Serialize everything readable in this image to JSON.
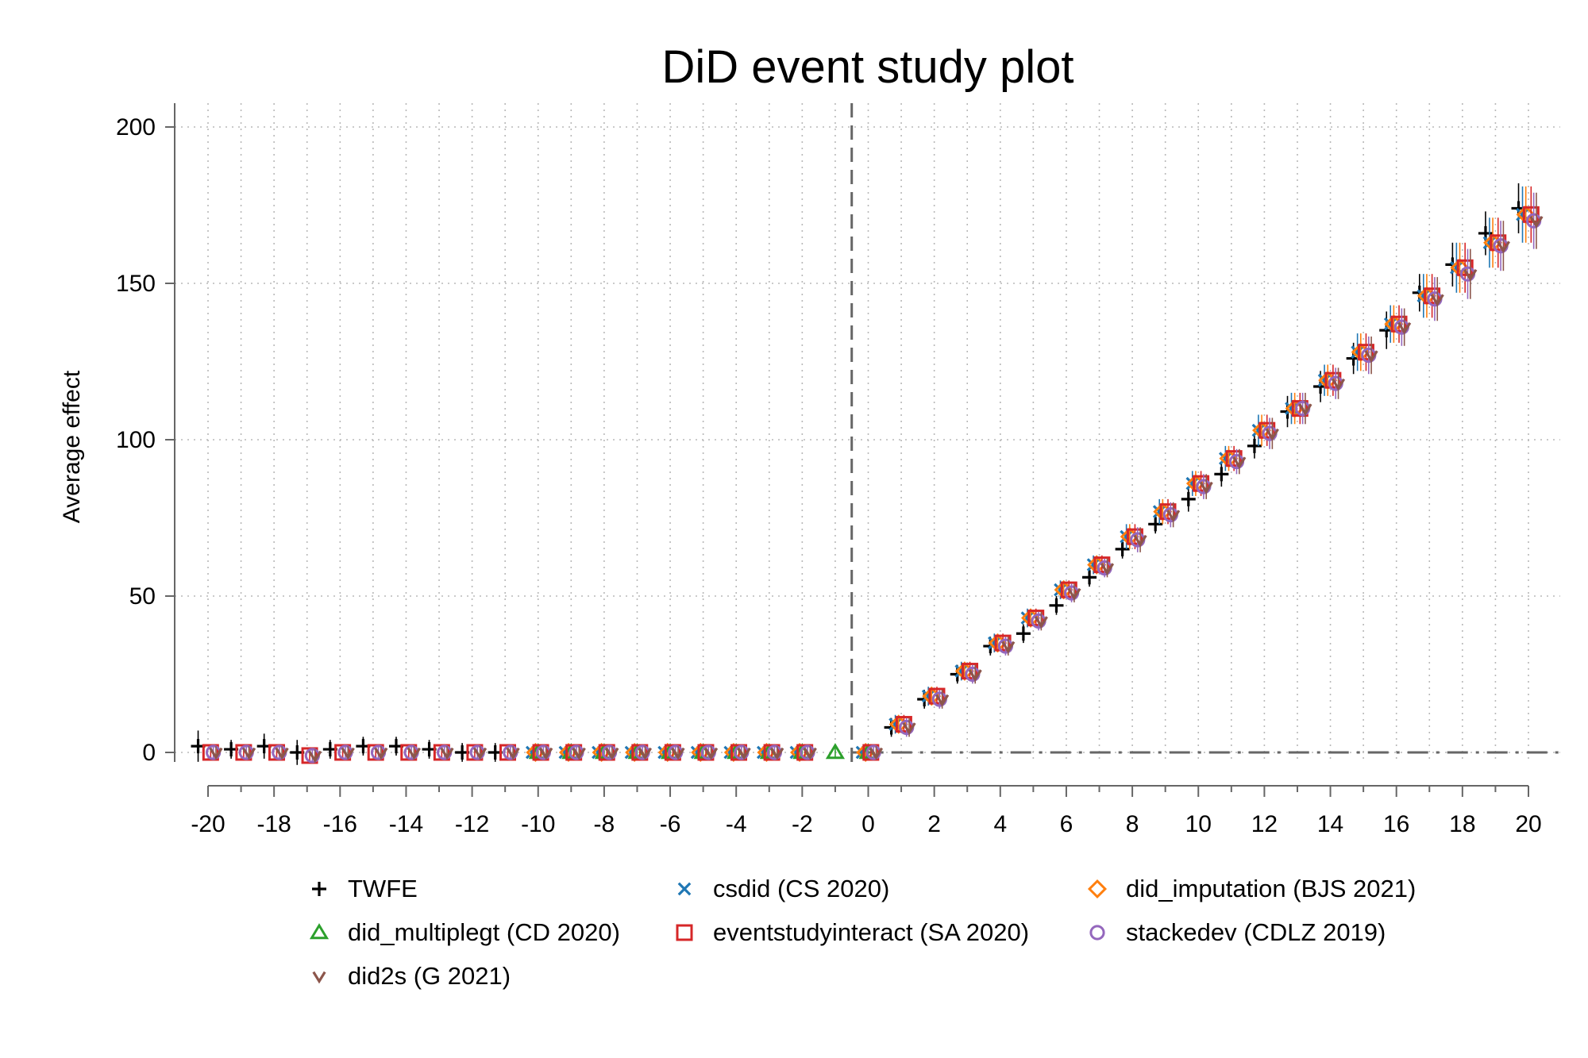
{
  "chart_data": {
    "type": "scatter",
    "title": "DiD event study plot",
    "xlabel": "",
    "ylabel": "Average effect",
    "xlim": [
      -20,
      20
    ],
    "ylim": [
      0,
      200
    ],
    "xticks": [
      "-20",
      "-18",
      "-16",
      "-14",
      "-12",
      "-10",
      "-8",
      "-6",
      "-4",
      "-2",
      "0",
      "2",
      "4",
      "6",
      "8",
      "10",
      "12",
      "14",
      "16",
      "18",
      "20"
    ],
    "yticks": [
      "0",
      "50",
      "100",
      "150",
      "200"
    ],
    "grid": true,
    "reference_lines": {
      "vertical_x": -0.5,
      "horizontal_y": 0
    },
    "legend_position": "bottom",
    "x": [
      -20,
      -19,
      -18,
      -17,
      -16,
      -15,
      -14,
      -13,
      -12,
      -11,
      -10,
      -9,
      -8,
      -7,
      -6,
      -5,
      -4,
      -3,
      -2,
      -1,
      0,
      1,
      2,
      3,
      4,
      5,
      6,
      7,
      8,
      9,
      10,
      11,
      12,
      13,
      14,
      15,
      16,
      17,
      18,
      19,
      20
    ],
    "series": [
      {
        "name": "TWFE",
        "marker": "plus",
        "color": "#000000",
        "offset": -0.3,
        "values": [
          2,
          1,
          2,
          0,
          1,
          2,
          2,
          1,
          0,
          0,
          null,
          null,
          null,
          null,
          null,
          null,
          null,
          null,
          null,
          null,
          null,
          8,
          17,
          25,
          34,
          38,
          47,
          56,
          65,
          73,
          81,
          89,
          98,
          109,
          117,
          126,
          135,
          147,
          156,
          166,
          174
        ],
        "ci": [
          5,
          3,
          4,
          4,
          3,
          3,
          3,
          3,
          3,
          3,
          null,
          null,
          null,
          null,
          null,
          null,
          null,
          null,
          null,
          null,
          null,
          3,
          3,
          3,
          3,
          3,
          3,
          3,
          3,
          3,
          4,
          4,
          4,
          5,
          5,
          5,
          6,
          6,
          7,
          7,
          8
        ]
      },
      {
        "name": "csdid (CS 2020)",
        "marker": "x",
        "color": "#1f77b4",
        "offset": -0.18,
        "values": [
          null,
          null,
          null,
          null,
          null,
          null,
          null,
          null,
          null,
          null,
          0,
          0,
          0,
          0,
          0,
          0,
          0,
          0,
          0,
          null,
          0,
          9,
          18,
          26,
          35,
          43,
          52,
          60,
          69,
          77,
          86,
          94,
          103,
          110,
          119,
          128,
          137,
          146,
          155,
          163,
          172
        ],
        "ci": [
          null,
          null,
          null,
          null,
          null,
          null,
          null,
          null,
          null,
          null,
          2,
          2,
          2,
          2,
          2,
          2,
          2,
          2,
          2,
          null,
          2,
          3,
          3,
          3,
          3,
          3,
          3,
          3,
          4,
          4,
          4,
          4,
          5,
          5,
          5,
          6,
          6,
          7,
          8,
          8,
          9
        ]
      },
      {
        "name": "did_imputation (BJS 2021)",
        "marker": "diamond",
        "color": "#ff7f0e",
        "offset": -0.08,
        "values": [
          null,
          null,
          null,
          null,
          null,
          null,
          null,
          null,
          null,
          null,
          0,
          0,
          0,
          0,
          0,
          0,
          0,
          0,
          0,
          null,
          0,
          9,
          18,
          26,
          35,
          43,
          52,
          60,
          69,
          77,
          86,
          94,
          103,
          110,
          119,
          128,
          137,
          146,
          155,
          163,
          172
        ],
        "ci": [
          null,
          null,
          null,
          null,
          null,
          null,
          null,
          null,
          null,
          null,
          2,
          2,
          2,
          2,
          2,
          2,
          2,
          2,
          2,
          null,
          2,
          3,
          3,
          3,
          3,
          3,
          3,
          3,
          4,
          4,
          4,
          4,
          5,
          5,
          5,
          6,
          6,
          7,
          8,
          8,
          9
        ]
      },
      {
        "name": "did_multiplegt (CD 2020)",
        "marker": "triangle",
        "color": "#2ca02c",
        "offset": 0,
        "values": [
          null,
          null,
          null,
          null,
          null,
          null,
          null,
          null,
          null,
          null,
          0,
          0,
          0,
          0,
          0,
          0,
          0,
          0,
          0,
          0,
          0,
          null,
          null,
          null,
          null,
          null,
          null,
          null,
          null,
          null,
          null,
          null,
          null,
          null,
          null,
          null,
          null,
          null,
          null,
          null,
          null
        ],
        "ci": [
          null,
          null,
          null,
          null,
          null,
          null,
          null,
          null,
          null,
          null,
          2,
          2,
          2,
          2,
          2,
          2,
          2,
          2,
          2,
          2,
          2,
          null,
          null,
          null,
          null,
          null,
          null,
          null,
          null,
          null,
          null,
          null,
          null,
          null,
          null,
          null,
          null,
          null,
          null,
          null,
          null
        ]
      },
      {
        "name": "eventstudyinteract (SA 2020)",
        "marker": "square",
        "color": "#d62728",
        "offset": 0.08,
        "values": [
          0,
          0,
          0,
          -1,
          0,
          0,
          0,
          0,
          0,
          0,
          0,
          0,
          0,
          0,
          0,
          0,
          0,
          0,
          0,
          null,
          0,
          9,
          18,
          26,
          35,
          43,
          52,
          60,
          69,
          77,
          86,
          94,
          103,
          110,
          119,
          128,
          137,
          146,
          155,
          163,
          172
        ],
        "ci": [
          2,
          2,
          2,
          2,
          2,
          2,
          2,
          2,
          2,
          2,
          2,
          2,
          2,
          2,
          2,
          2,
          2,
          2,
          2,
          null,
          2,
          3,
          3,
          3,
          3,
          3,
          3,
          3,
          4,
          4,
          4,
          4,
          5,
          5,
          5,
          6,
          6,
          7,
          8,
          8,
          9
        ]
      },
      {
        "name": "stackedev (CDLZ 2019)",
        "marker": "circle",
        "color": "#9467bd",
        "offset": 0.16,
        "values": [
          0,
          0,
          0,
          -1,
          0,
          0,
          0,
          0,
          0,
          0,
          0,
          0,
          0,
          0,
          0,
          0,
          0,
          0,
          0,
          null,
          0,
          8,
          17,
          25,
          34,
          42,
          51,
          59,
          68,
          76,
          85,
          93,
          102,
          110,
          118,
          127,
          136,
          145,
          153,
          162,
          170
        ],
        "ci": [
          2,
          2,
          2,
          2,
          2,
          2,
          2,
          2,
          2,
          2,
          2,
          2,
          2,
          2,
          2,
          2,
          2,
          2,
          2,
          null,
          2,
          3,
          3,
          3,
          3,
          3,
          3,
          3,
          4,
          4,
          4,
          4,
          5,
          5,
          5,
          6,
          6,
          7,
          8,
          8,
          9
        ]
      },
      {
        "name": "did2s (G 2021)",
        "marker": "v",
        "color": "#8c564b",
        "offset": 0.24,
        "values": [
          0,
          0,
          0,
          -1,
          0,
          0,
          0,
          0,
          0,
          0,
          0,
          0,
          0,
          0,
          0,
          0,
          0,
          0,
          0,
          null,
          0,
          8,
          17,
          25,
          34,
          42,
          51,
          59,
          68,
          76,
          85,
          93,
          102,
          110,
          118,
          127,
          136,
          145,
          153,
          162,
          170
        ],
        "ci": [
          2,
          2,
          2,
          2,
          2,
          2,
          2,
          2,
          2,
          2,
          2,
          2,
          2,
          2,
          2,
          2,
          2,
          2,
          2,
          null,
          2,
          3,
          3,
          3,
          3,
          3,
          3,
          3,
          4,
          4,
          4,
          4,
          5,
          5,
          5,
          6,
          6,
          7,
          8,
          8,
          9
        ]
      }
    ],
    "legend": [
      {
        "label": "TWFE",
        "marker": "plus",
        "color": "#000000"
      },
      {
        "label": "csdid (CS 2020)",
        "marker": "x",
        "color": "#1f77b4"
      },
      {
        "label": "did_imputation (BJS 2021)",
        "marker": "diamond",
        "color": "#ff7f0e"
      },
      {
        "label": "did_multiplegt (CD 2020)",
        "marker": "triangle",
        "color": "#2ca02c"
      },
      {
        "label": "eventstudyinteract (SA 2020)",
        "marker": "square",
        "color": "#d62728"
      },
      {
        "label": "stackedev (CDLZ 2019)",
        "marker": "circle",
        "color": "#9467bd"
      },
      {
        "label": "did2s (G 2021)",
        "marker": "v",
        "color": "#8c564b"
      }
    ]
  }
}
